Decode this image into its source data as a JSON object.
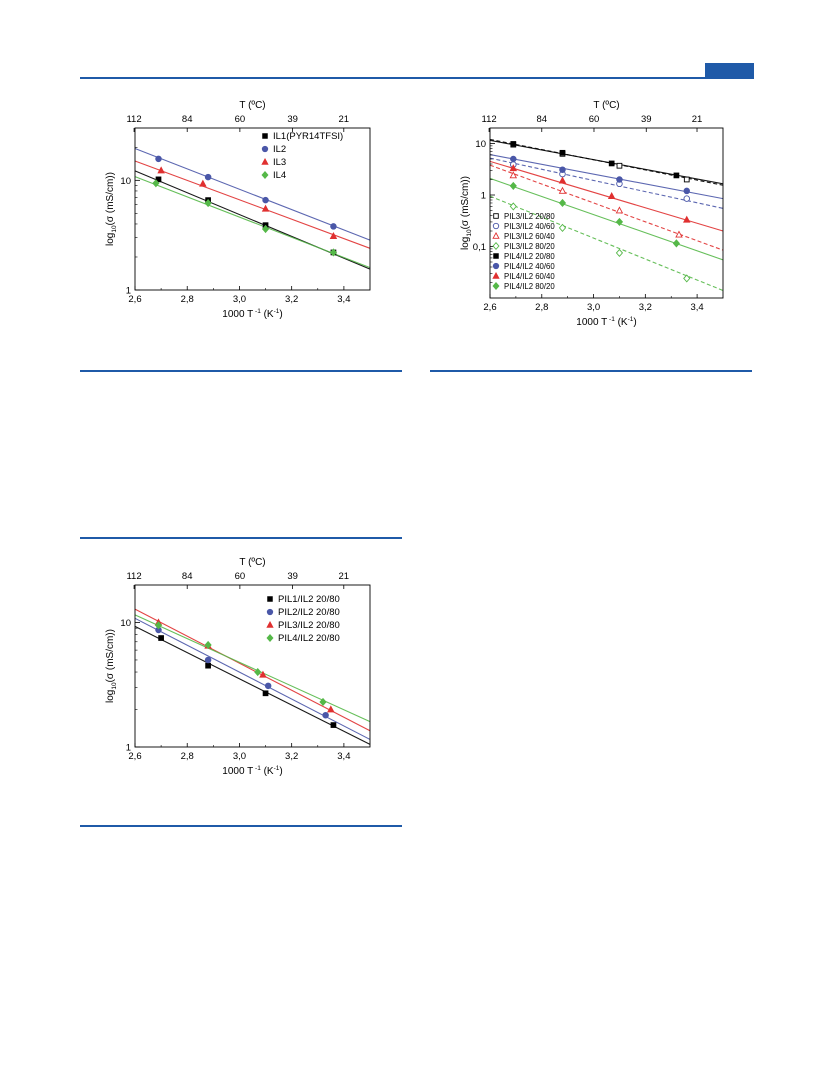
{
  "header": {
    "accent_color": "#1f5aa8"
  },
  "chart_data": [
    {
      "id": "c1",
      "type": "scatter",
      "title": "",
      "xlabel": "1000 T",
      "xlabel_sup": "-1",
      "xlabel_unit": "(K",
      "xlabel_unit_sup": "-1",
      "xlabel_close": ")",
      "ylabel_pre": "log",
      "ylabel_sub": "10",
      "ylabel_post": "(σ (mS/cm))",
      "top_xlabel": "T (ºC)",
      "y_scale": "log",
      "xlim": [
        2.6,
        3.5
      ],
      "ylim": [
        1,
        30
      ],
      "x_ticks": [
        2.6,
        2.8,
        3.0,
        3.2,
        3.4
      ],
      "x_tick_labels": [
        "2,6",
        "2,8",
        "3,0",
        "3,2",
        "3,4"
      ],
      "y_ticks": [
        1,
        10
      ],
      "y_tick_labels": [
        "1",
        "10"
      ],
      "top_ticks": [
        112,
        84,
        60,
        39,
        21
      ],
      "top_tick_labels": [
        "112",
        "84",
        "60",
        "39",
        "21"
      ],
      "legend_position": "top-right",
      "series": [
        {
          "name": "IL1(PYR14TFSI)",
          "color": "#000000",
          "marker": "square",
          "filled": true,
          "x": [
            2.69,
            2.88,
            3.1,
            3.36
          ],
          "y": [
            10.2,
            6.6,
            3.9,
            2.2
          ],
          "fit": {
            "x": [
              2.6,
              3.5
            ],
            "y": [
              12.2,
              1.55
            ]
          }
        },
        {
          "name": "IL2",
          "color": "#4a57a8",
          "marker": "circle",
          "filled": true,
          "x": [
            2.69,
            2.88,
            3.1,
            3.36
          ],
          "y": [
            15.7,
            10.7,
            6.6,
            3.8
          ],
          "fit": {
            "x": [
              2.6,
              3.5
            ],
            "y": [
              19.5,
              2.85
            ]
          }
        },
        {
          "name": "IL3",
          "color": "#e03030",
          "marker": "triangle",
          "filled": true,
          "x": [
            2.7,
            2.86,
            3.1,
            3.36
          ],
          "y": [
            12.3,
            9.3,
            5.5,
            3.1
          ],
          "fit": {
            "x": [
              2.6,
              3.5
            ],
            "y": [
              15.0,
              2.4
            ]
          }
        },
        {
          "name": "IL4",
          "color": "#55b848",
          "marker": "diamond",
          "filled": true,
          "x": [
            2.68,
            2.88,
            3.1,
            3.36
          ],
          "y": [
            9.4,
            6.2,
            3.6,
            2.2
          ],
          "fit": {
            "x": [
              2.6,
              3.5
            ],
            "y": [
              10.8,
              1.6
            ]
          }
        }
      ]
    },
    {
      "id": "c2",
      "type": "scatter",
      "title": "",
      "xlabel": "1000 T",
      "xlabel_sup": "-1",
      "xlabel_unit": "(K",
      "xlabel_unit_sup": "-1",
      "xlabel_close": ")",
      "ylabel_pre": "log",
      "ylabel_sub": "10",
      "ylabel_post": "(σ (mS/cm))",
      "top_xlabel": "T (ºC)",
      "y_scale": "log",
      "xlim": [
        2.6,
        3.5
      ],
      "ylim": [
        0.01,
        20
      ],
      "x_ticks": [
        2.6,
        2.8,
        3.0,
        3.2,
        3.4
      ],
      "x_tick_labels": [
        "2,6",
        "2,8",
        "3,0",
        "3,2",
        "3,4"
      ],
      "y_ticks": [
        0.1,
        1,
        10
      ],
      "y_tick_labels": [
        "0,1",
        "1",
        "10"
      ],
      "top_ticks": [
        112,
        84,
        60,
        39,
        21
      ],
      "top_tick_labels": [
        "112",
        "84",
        "60",
        "39",
        "21"
      ],
      "legend_position": "bottom-left",
      "series": [
        {
          "name": "PIL3/IL2 20/80",
          "color": "#000000",
          "marker": "square",
          "filled": false,
          "x": [
            2.69,
            2.88,
            3.1,
            3.36
          ],
          "y": [
            9.5,
            6.3,
            3.7,
            2.0
          ],
          "fit": {
            "x": [
              2.6,
              3.5
            ],
            "y": [
              12.0,
              1.55
            ],
            "dashed": true
          }
        },
        {
          "name": "PIL3/IL2 40/60",
          "color": "#4a57a8",
          "marker": "circle",
          "filled": false,
          "x": [
            2.69,
            2.88,
            3.1,
            3.36
          ],
          "y": [
            3.9,
            2.55,
            1.65,
            0.85
          ],
          "fit": {
            "x": [
              2.6,
              3.5
            ],
            "y": [
              5.2,
              0.55
            ],
            "dashed": true
          }
        },
        {
          "name": "PIL3/IL2 60/40",
          "color": "#e03030",
          "marker": "triangle",
          "filled": false,
          "x": [
            2.69,
            2.88,
            3.1,
            3.33
          ],
          "y": [
            2.4,
            1.2,
            0.5,
            0.17
          ],
          "fit": {
            "x": [
              2.6,
              3.5
            ],
            "y": [
              3.8,
              0.085
            ],
            "dashed": true
          }
        },
        {
          "name": "PIL3/IL2 80/20",
          "color": "#55b848",
          "marker": "diamond",
          "filled": false,
          "x": [
            2.69,
            2.88,
            3.1,
            3.36
          ],
          "y": [
            0.6,
            0.23,
            0.075,
            0.024
          ],
          "fit": {
            "x": [
              2.6,
              3.5
            ],
            "y": [
              0.95,
              0.014
            ],
            "dashed": true
          }
        },
        {
          "name": "PIL4/IL2 20/80",
          "color": "#000000",
          "marker": "square",
          "filled": true,
          "x": [
            2.69,
            2.88,
            3.07,
            3.32
          ],
          "y": [
            9.8,
            6.6,
            4.1,
            2.4
          ],
          "fit": {
            "x": [
              2.6,
              3.5
            ],
            "y": [
              11.5,
              1.65
            ],
            "dashed": false
          }
        },
        {
          "name": "PIL4/IL2 40/60",
          "color": "#4a57a8",
          "marker": "circle",
          "filled": true,
          "x": [
            2.69,
            2.88,
            3.1,
            3.36
          ],
          "y": [
            5.0,
            3.1,
            2.0,
            1.2
          ],
          "fit": {
            "x": [
              2.6,
              3.5
            ],
            "y": [
              6.1,
              0.85
            ],
            "dashed": false
          }
        },
        {
          "name": "PIL4/IL2 60/40",
          "color": "#e03030",
          "marker": "triangle",
          "filled": true,
          "x": [
            2.69,
            2.88,
            3.07,
            3.36
          ],
          "y": [
            3.3,
            1.9,
            0.95,
            0.33
          ],
          "fit": {
            "x": [
              2.6,
              3.5
            ],
            "y": [
              4.5,
              0.2
            ],
            "dashed": false
          }
        },
        {
          "name": "PIL4/IL2 80/20",
          "color": "#55b848",
          "marker": "diamond",
          "filled": true,
          "x": [
            2.69,
            2.88,
            3.1,
            3.32
          ],
          "y": [
            1.5,
            0.7,
            0.3,
            0.115
          ],
          "fit": {
            "x": [
              2.6,
              3.5
            ],
            "y": [
              2.1,
              0.055
            ],
            "dashed": false
          }
        }
      ]
    },
    {
      "id": "c3",
      "type": "scatter",
      "title": "",
      "xlabel": "1000 T",
      "xlabel_sup": "-1",
      "xlabel_unit": "(K",
      "xlabel_unit_sup": "-1",
      "xlabel_close": ")",
      "ylabel_pre": "log",
      "ylabel_sub": "10",
      "ylabel_post": "(σ (mS/cm))",
      "top_xlabel": "T (ºC)",
      "y_scale": "log",
      "xlim": [
        2.6,
        3.5
      ],
      "ylim": [
        1,
        20
      ],
      "x_ticks": [
        2.6,
        2.8,
        3.0,
        3.2,
        3.4
      ],
      "x_tick_labels": [
        "2,6",
        "2,8",
        "3,0",
        "3,2",
        "3,4"
      ],
      "y_ticks": [
        1,
        10
      ],
      "y_tick_labels": [
        "1",
        "10"
      ],
      "top_ticks": [
        112,
        84,
        60,
        39,
        21
      ],
      "top_tick_labels": [
        "112",
        "84",
        "60",
        "39",
        "21"
      ],
      "legend_position": "top-right",
      "series": [
        {
          "name": "PIL1/IL2 20/80",
          "color": "#000000",
          "marker": "square",
          "filled": true,
          "x": [
            2.7,
            2.88,
            3.1,
            3.36
          ],
          "y": [
            7.5,
            4.5,
            2.7,
            1.5
          ],
          "fit": {
            "x": [
              2.6,
              3.5
            ],
            "y": [
              9.3,
              1.05
            ]
          }
        },
        {
          "name": "PIL2/IL2 20/80",
          "color": "#4a57a8",
          "marker": "circle",
          "filled": true,
          "x": [
            2.69,
            2.88,
            3.11,
            3.33
          ],
          "y": [
            8.7,
            5.0,
            3.1,
            1.8
          ],
          "fit": {
            "x": [
              2.6,
              3.5
            ],
            "y": [
              10.8,
              1.15
            ]
          }
        },
        {
          "name": "PIL3/IL2 20/80",
          "color": "#e03030",
          "marker": "triangle",
          "filled": true,
          "x": [
            2.69,
            2.88,
            3.09,
            3.35
          ],
          "y": [
            10.0,
            6.5,
            3.8,
            2.0
          ],
          "fit": {
            "x": [
              2.6,
              3.5
            ],
            "y": [
              12.8,
              1.35
            ]
          }
        },
        {
          "name": "PIL4/IL2 20/80",
          "color": "#55b848",
          "marker": "diamond",
          "filled": true,
          "x": [
            2.69,
            2.88,
            3.07,
            3.32
          ],
          "y": [
            9.5,
            6.6,
            4.0,
            2.3
          ],
          "fit": {
            "x": [
              2.6,
              3.5
            ],
            "y": [
              11.5,
              1.6
            ]
          }
        }
      ]
    }
  ]
}
